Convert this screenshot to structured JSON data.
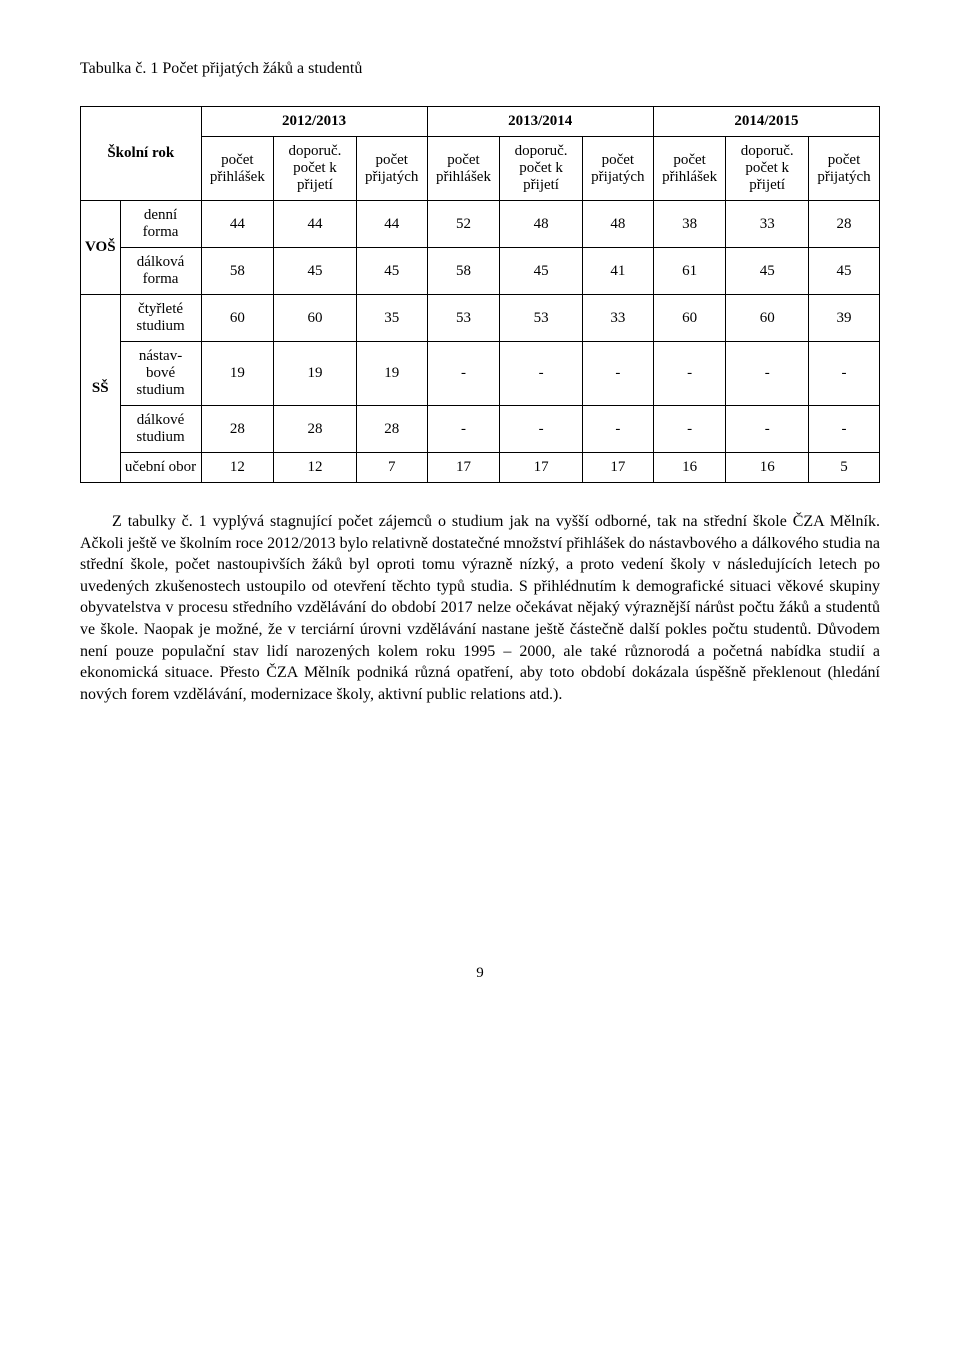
{
  "title": "Tabulka č. 1 Počet přijatých žáků a studentů",
  "table": {
    "schoolYearLabel": "Školní rok",
    "years": [
      "2012/2013",
      "2013/2014",
      "2014/2015"
    ],
    "subheaders": [
      "počet přihlášek",
      "doporuč. počet k přijetí",
      "počet přijatých"
    ],
    "groups": [
      {
        "code": "VOŠ",
        "rows": [
          {
            "label": "denní forma",
            "values": [
              44,
              44,
              44,
              52,
              48,
              48,
              38,
              33,
              28
            ]
          },
          {
            "label": "dálková forma",
            "values": [
              58,
              45,
              45,
              58,
              45,
              41,
              61,
              45,
              45
            ]
          }
        ]
      },
      {
        "code": "SŠ",
        "rows": [
          {
            "label": "čtyřleté studium",
            "values": [
              60,
              60,
              35,
              53,
              53,
              33,
              60,
              60,
              39
            ]
          },
          {
            "label": "nástav-bové studium",
            "values": [
              19,
              19,
              19,
              "-",
              "-",
              "-",
              "-",
              "-",
              "-"
            ]
          },
          {
            "label": "dálkové studium",
            "values": [
              28,
              28,
              28,
              "-",
              "-",
              "-",
              "-",
              "-",
              "-"
            ]
          },
          {
            "label": "učební obor",
            "values": [
              12,
              12,
              7,
              17,
              17,
              17,
              16,
              16,
              5
            ]
          }
        ]
      }
    ]
  },
  "paragraph": "Z tabulky č. 1 vyplývá stagnující počet zájemců o studium jak na vyšší odborné, tak na střední škole ČZA Mělník. Ačkoli ještě ve školním roce 2012/2013 bylo relativně dostatečné množství přihlášek do nástavbového a dálkového studia na střední škole, počet nastoupivších žáků byl oproti tomu výrazně nízký, a proto vedení školy v následujících letech po uvedených zkušenostech ustoupilo od otevření těchto typů studia. S přihlédnutím k demografické situaci věkové skupiny obyvatelstva v procesu středního vzdělávání do období 2017 nelze očekávat nějaký výraznější nárůst počtu žáků a studentů ve škole. Naopak je možné, že v terciární úrovni vzdělávání nastane ještě částečně další pokles počtu studentů. Důvodem není pouze populační stav lidí narozených kolem roku 1995 – 2000, ale také různorodá a početná nabídka studií a ekonomická situace. Přesto ČZA Mělník podniká různá opatření, aby toto období dokázala úspěšně překlenout (hledání nových forem vzdělávání, modernizace školy, aktivní public relations atd.).",
  "pageNumber": "9"
}
